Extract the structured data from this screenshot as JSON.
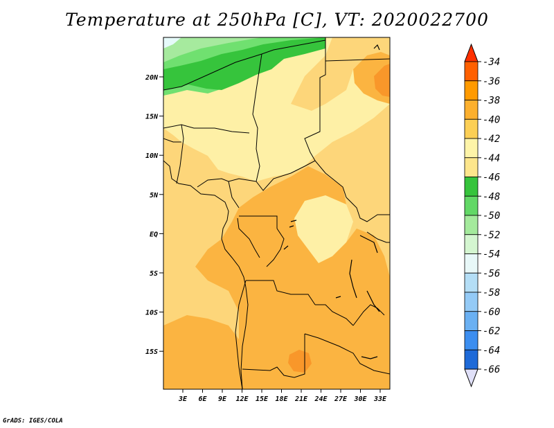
{
  "title": "Temperature at 250hPa [C], VT: 2020022700",
  "credit": "GrADS: IGES/COLA",
  "lat_labels": [
    "20N",
    "15N",
    "10N",
    "5N",
    "EQ",
    "5S",
    "10S",
    "15S"
  ],
  "lon_labels": [
    "3E",
    "6E",
    "9E",
    "12E",
    "15E",
    "18E",
    "21E",
    "24E",
    "27E",
    "30E",
    "33E"
  ],
  "colorbar": {
    "levels": [
      "-34",
      "-36",
      "-38",
      "-40",
      "-42",
      "-44",
      "-46",
      "-48",
      "-50",
      "-52",
      "-54",
      "-56",
      "-58",
      "-60",
      "-62",
      "-64",
      "-66"
    ],
    "colors": [
      "#ff6000",
      "#ff9a00",
      "#fcb02e",
      "#fccf55",
      "#fef4a8",
      "#fde68c",
      "#36c43c",
      "#62d866",
      "#a4ea9c",
      "#d4f6d0",
      "#e8f8f8",
      "#b4def6",
      "#94caf6",
      "#6ab0f2",
      "#3c8ef0",
      "#1e6ad8",
      "#1048b8",
      "#0a1880"
    ],
    "top_color": "#ff3000",
    "bottom_color": "#e0e0f8"
  },
  "fill_colors": {
    "base": "#fdd67a",
    "light": "#fef0a6",
    "orange": "#fbb441",
    "dark_orange": "#f9972a",
    "green": "#36c43c",
    "light_green": "#70e070",
    "pale_green": "#a6ea9e",
    "pale_cyan": "#e6fafa"
  }
}
